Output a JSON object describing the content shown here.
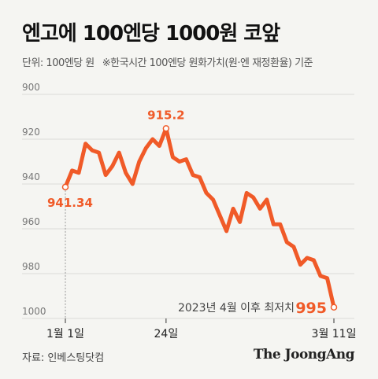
{
  "header": {
    "title": "엔고에 100엔당 1000원 코앞",
    "unit": "단위: 100엔당 원",
    "note": "※한국시간 100엔당 원화가치(원·엔 재정환율) 기준"
  },
  "footer": {
    "source": "자료: 인베스팅닷컴",
    "brand": "The JoongAng"
  },
  "chart_data": {
    "type": "line",
    "ylim": [
      900,
      1000
    ],
    "y_inverted": true,
    "yticks": [
      "900",
      "920",
      "940",
      "960",
      "980",
      "1000"
    ],
    "xticks": [
      "1월 1일",
      "24일",
      "3월 11일"
    ],
    "grid": true,
    "color": "#f05a28",
    "series": [
      {
        "values": [
          941.34,
          934,
          935,
          922,
          925,
          926,
          936,
          932,
          926,
          935,
          940,
          930,
          924,
          920,
          923,
          915.2,
          928,
          930,
          929,
          936,
          937,
          944,
          947,
          954,
          961,
          951,
          957,
          944,
          946,
          951,
          947,
          958,
          958,
          966,
          968,
          976,
          973,
          974,
          981,
          982,
          995
        ]
      }
    ],
    "annotations": {
      "start_label": "941.34",
      "peak_label": "915.2",
      "end_label": "995",
      "end_note": "2023년 4월 이후 최저치"
    }
  }
}
